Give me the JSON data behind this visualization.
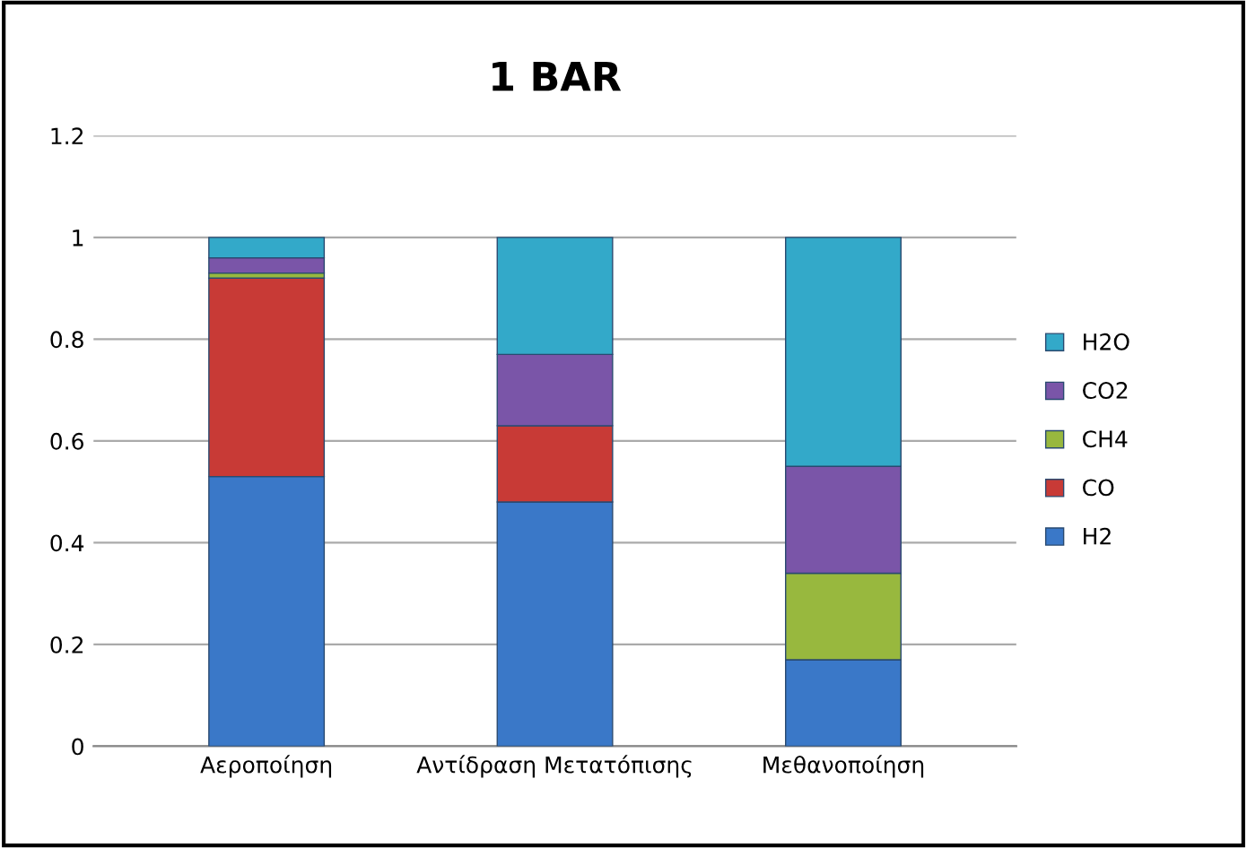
{
  "chart_data": {
    "type": "bar",
    "title": "1 BAR",
    "stacked": true,
    "categories": [
      "Αεροποίηση",
      "Αντίδραση Μετατόπισης",
      "Μεθανοποίηση"
    ],
    "series": [
      {
        "name": "H2",
        "color": "#3a78c8",
        "values": [
          0.53,
          0.48,
          0.17
        ]
      },
      {
        "name": "CO",
        "color": "#c83a36",
        "values": [
          0.39,
          0.15,
          0
        ]
      },
      {
        "name": "CH4",
        "color": "#98b83e",
        "values": [
          0.01,
          0,
          0.17
        ]
      },
      {
        "name": "CO2",
        "color": "#7a55a8",
        "values": [
          0.03,
          0.14,
          0.21
        ]
      },
      {
        "name": "H2O",
        "color": "#33a9c9",
        "values": [
          0.04,
          0.23,
          0.45
        ]
      }
    ],
    "ylim": [
      0,
      1.2
    ],
    "yticks": [
      0,
      0.2,
      0.4,
      0.6,
      0.8,
      1,
      1.2
    ],
    "grid": "y",
    "legend": "right"
  }
}
